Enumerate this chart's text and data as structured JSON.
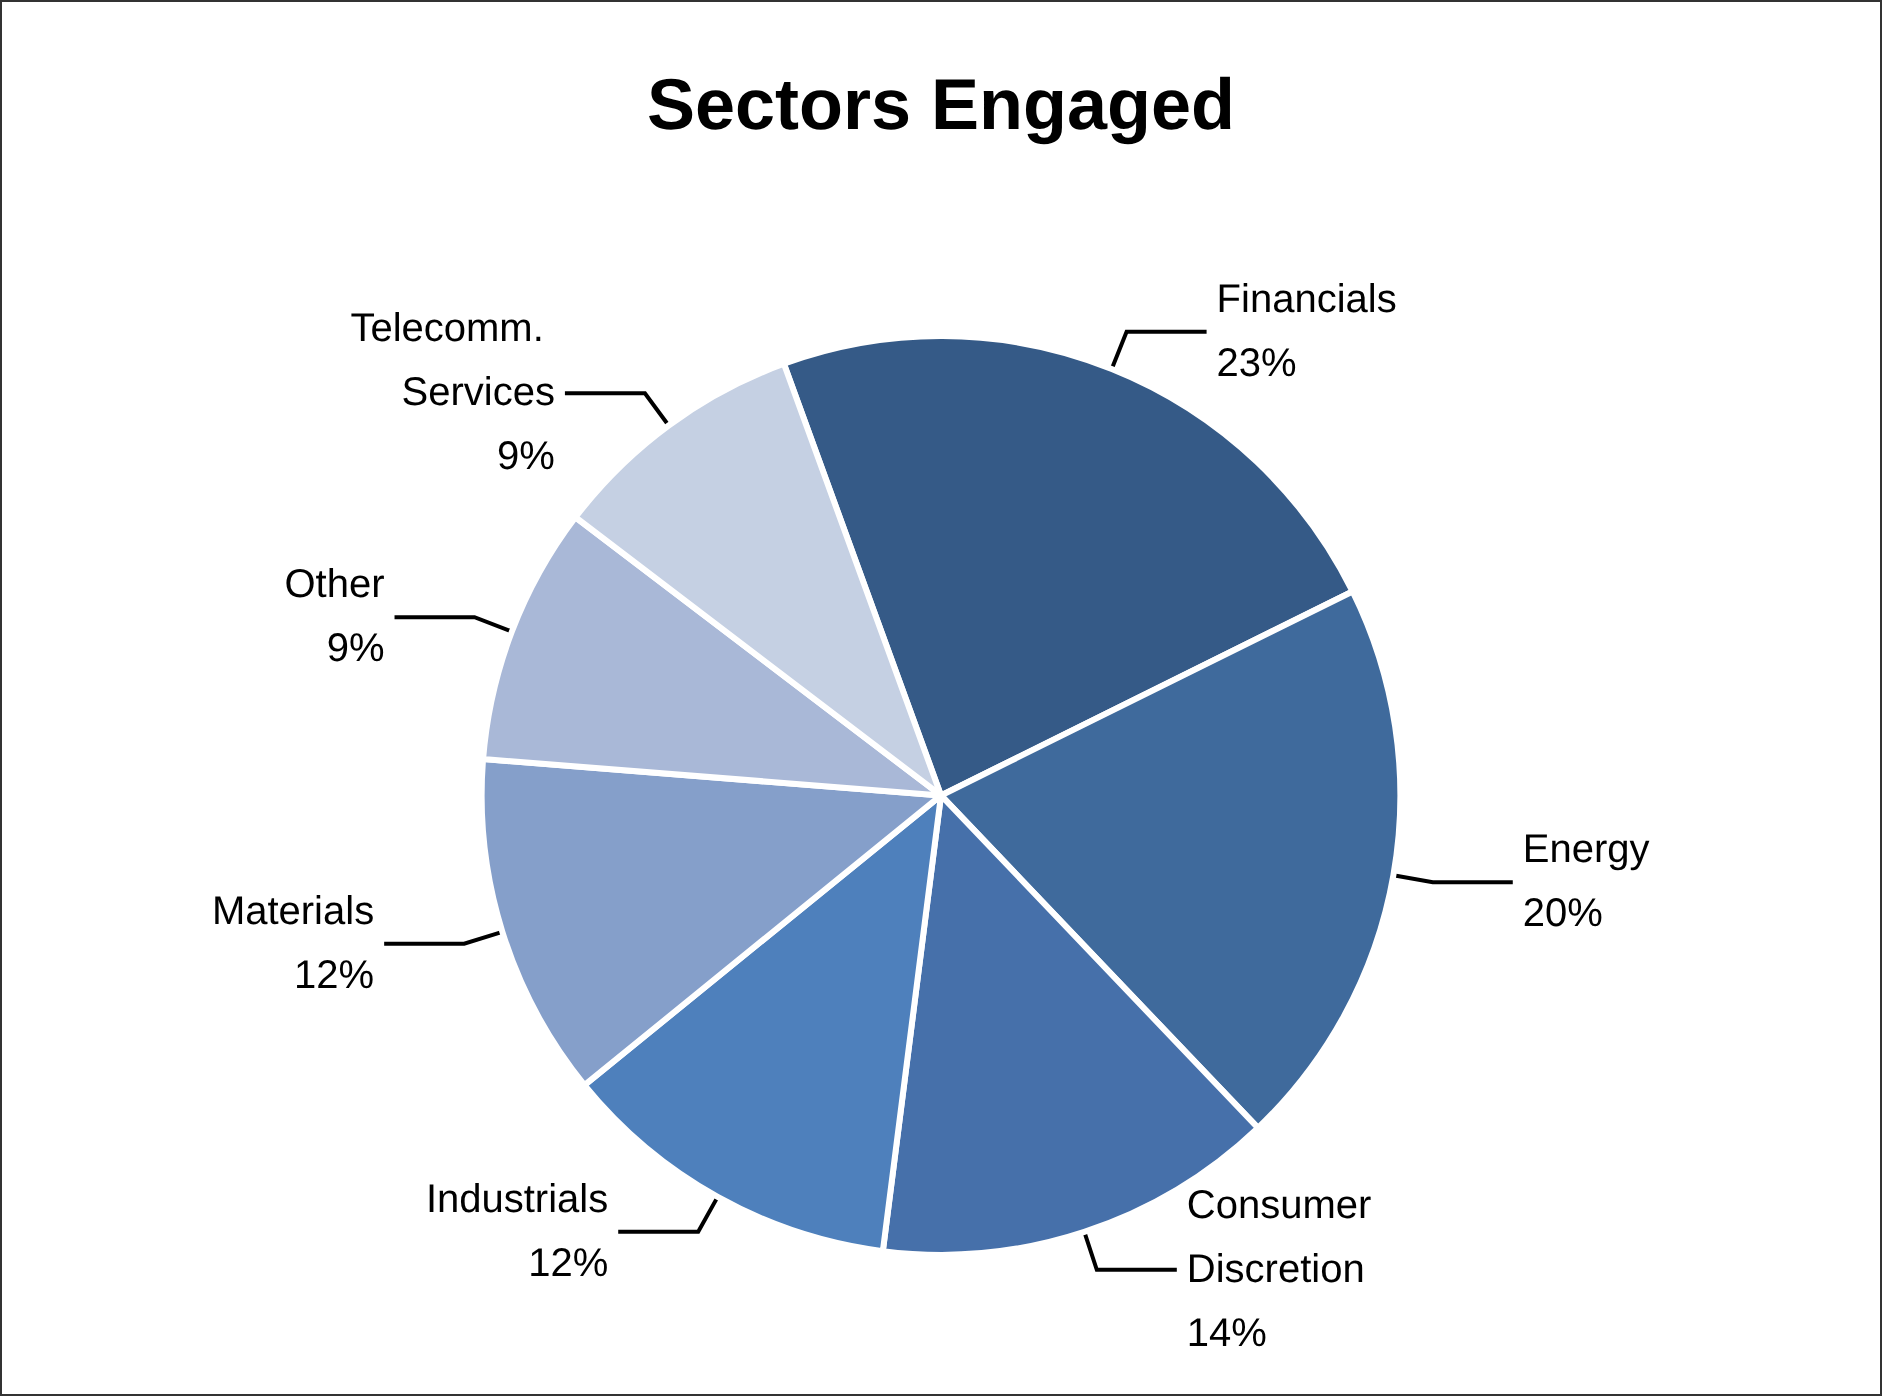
{
  "chart_data": {
    "type": "pie",
    "title": "Sectors Engaged",
    "categories": [
      "Financials",
      "Energy",
      "Consumer Discretion",
      "Industrials",
      "Materials",
      "Other",
      "Telecomm. Services"
    ],
    "values": [
      23,
      20,
      14,
      12,
      12,
      9,
      9
    ],
    "value_labels": [
      "23%",
      "20%",
      "14%",
      "12%",
      "12%",
      "9%",
      "9%"
    ],
    "colors": [
      "#355a87",
      "#3f6a9c",
      "#4670aa",
      "#4e80bc",
      "#859fca",
      "#a9b8d7",
      "#c5d0e3"
    ],
    "legend": false
  }
}
